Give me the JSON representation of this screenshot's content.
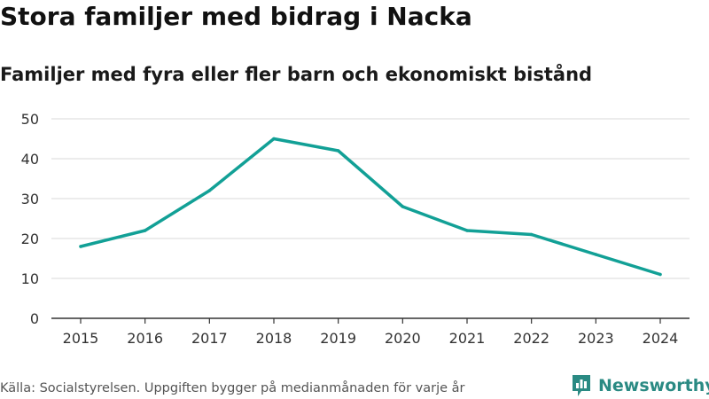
{
  "title": "Stora familjer med bidrag i Nacka",
  "subtitle": "Familjer med fyra eller fler barn och ekonomiskt bistånd",
  "source": "Källa: Socialstyrelsen. Uppgiften bygger på medianmånaden för varje år",
  "brand": {
    "name": "Newsworthy",
    "color": "#2a8a83"
  },
  "chart_data": {
    "type": "line",
    "title": "Stora familjer med bidrag i Nacka",
    "subtitle": "Familjer med fyra eller fler barn och ekonomiskt bistånd",
    "xlabel": "",
    "ylabel": "",
    "x": [
      "2015",
      "2016",
      "2017",
      "2018",
      "2019",
      "2020",
      "2021",
      "2022",
      "2023",
      "2024"
    ],
    "series": [
      {
        "name": "Familjer",
        "values": [
          18,
          22,
          32,
          45,
          42,
          28,
          22,
          21,
          16,
          11
        ],
        "color": "#12a096"
      }
    ],
    "ylim": [
      0,
      50
    ],
    "yticks": [
      0,
      10,
      20,
      30,
      40,
      50
    ],
    "grid": true,
    "legend": "none"
  }
}
